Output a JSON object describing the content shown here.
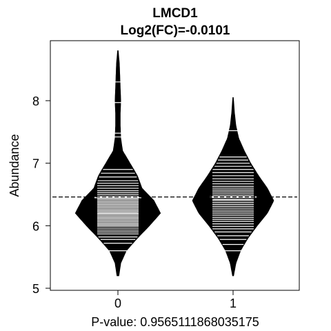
{
  "chart_data": {
    "type": "beanplot",
    "title": "LMCD1",
    "subtitle": "Log2(FC)=-0.0101",
    "xlabel": "P-value: 0.9565111868035175",
    "ylabel": "Abundance",
    "categories": [
      "0",
      "1"
    ],
    "ylim": [
      5,
      8.8
    ],
    "yticks": [
      5,
      6,
      7,
      8
    ],
    "overall_mean": 6.46,
    "groups": [
      {
        "name": "0",
        "mean": 6.45,
        "median": 6.2,
        "range": [
          5.2,
          8.8
        ],
        "density": [
          [
            5.2,
            0.02
          ],
          [
            5.4,
            0.06
          ],
          [
            5.6,
            0.18
          ],
          [
            5.8,
            0.42
          ],
          [
            6.0,
            0.68
          ],
          [
            6.2,
            0.92
          ],
          [
            6.4,
            0.78
          ],
          [
            6.6,
            0.52
          ],
          [
            6.8,
            0.42
          ],
          [
            7.0,
            0.26
          ],
          [
            7.2,
            0.1
          ],
          [
            7.4,
            0.06
          ],
          [
            7.6,
            0.05
          ],
          [
            7.8,
            0.05
          ],
          [
            8.0,
            0.06
          ],
          [
            8.2,
            0.05
          ],
          [
            8.4,
            0.04
          ],
          [
            8.6,
            0.03
          ],
          [
            8.8,
            0.005
          ]
        ],
        "values": [
          5.6,
          5.72,
          5.78,
          5.82,
          5.87,
          5.9,
          5.93,
          5.96,
          5.99,
          6.01,
          6.03,
          6.05,
          6.07,
          6.09,
          6.11,
          6.13,
          6.15,
          6.17,
          6.19,
          6.2,
          6.22,
          6.24,
          6.26,
          6.28,
          6.3,
          6.32,
          6.34,
          6.36,
          6.38,
          6.4,
          6.42,
          6.44,
          6.47,
          6.5,
          6.53,
          6.56,
          6.6,
          6.64,
          6.68,
          6.72,
          6.78,
          6.84,
          6.9,
          7.42,
          7.48,
          7.97,
          8.3
        ]
      },
      {
        "name": "1",
        "mean": 6.46,
        "median": 6.42,
        "range": [
          5.2,
          8.05
        ],
        "density": [
          [
            5.2,
            0.01
          ],
          [
            5.4,
            0.06
          ],
          [
            5.6,
            0.16
          ],
          [
            5.8,
            0.32
          ],
          [
            6.0,
            0.52
          ],
          [
            6.2,
            0.74
          ],
          [
            6.4,
            0.88
          ],
          [
            6.6,
            0.74
          ],
          [
            6.8,
            0.55
          ],
          [
            7.0,
            0.38
          ],
          [
            7.2,
            0.24
          ],
          [
            7.4,
            0.12
          ],
          [
            7.6,
            0.06
          ],
          [
            7.8,
            0.03
          ],
          [
            8.05,
            0.005
          ]
        ],
        "values": [
          5.6,
          5.7,
          5.78,
          5.84,
          5.9,
          5.95,
          5.99,
          6.03,
          6.07,
          6.1,
          6.13,
          6.16,
          6.19,
          6.22,
          6.25,
          6.28,
          6.31,
          6.34,
          6.37,
          6.4,
          6.42,
          6.45,
          6.48,
          6.51,
          6.54,
          6.57,
          6.6,
          6.63,
          6.67,
          6.71,
          6.75,
          6.8,
          6.85,
          6.9,
          6.95,
          7.0,
          7.05,
          7.1,
          7.52
        ]
      }
    ]
  }
}
